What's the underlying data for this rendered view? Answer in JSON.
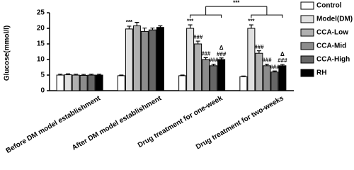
{
  "chart_data": {
    "type": "bar",
    "y_label": "Glucose(mmol/l)",
    "categories": [
      "Before DM model establishment",
      "After DM model establishment",
      "Drug treatment for one-week",
      "Drug treatment for two-weeks"
    ],
    "series": [
      {
        "name": "Control",
        "color": "#ffffff",
        "values": [
          5.0,
          4.8,
          4.8,
          4.5
        ],
        "errors": [
          0.3,
          0.2,
          0.2,
          0.2
        ],
        "annotations": [
          null,
          null,
          null,
          null
        ]
      },
      {
        "name": "Model(DM)",
        "color": "#e0e0e0",
        "values": [
          5.1,
          19.8,
          20,
          20
        ],
        "errors": [
          0.3,
          0.9,
          1.1,
          1.1
        ],
        "annotations": [
          null,
          [
            "***"
          ],
          [
            "***"
          ],
          [
            "***"
          ]
        ]
      },
      {
        "name": "CCA-Low",
        "color": "#b0b0b0",
        "values": [
          5.0,
          20.8,
          15,
          12
        ],
        "errors": [
          0.3,
          1.1,
          0.9,
          0.8
        ],
        "annotations": [
          null,
          null,
          [
            "###"
          ],
          [
            "###"
          ]
        ]
      },
      {
        "name": "CCA-Mid",
        "color": "#8c8c8c",
        "values": [
          4.9,
          19,
          10,
          8
        ],
        "errors": [
          0.3,
          1.1,
          0.6,
          0.5
        ],
        "annotations": [
          null,
          null,
          [
            "###"
          ],
          [
            "###"
          ]
        ]
      },
      {
        "name": "CCA-High",
        "color": "#666666",
        "values": [
          5.0,
          19.5,
          8,
          6
        ],
        "errors": [
          0.3,
          0.6,
          0.5,
          0.3
        ],
        "annotations": [
          null,
          null,
          [
            "###"
          ],
          [
            "###"
          ]
        ]
      },
      {
        "name": "RH",
        "color": "#000000",
        "values": [
          5.0,
          20.3,
          10,
          8
        ],
        "errors": [
          0.3,
          0.5,
          0.5,
          0.4
        ],
        "annotations": [
          null,
          null,
          [
            "Δ",
            "###"
          ],
          [
            "Δ",
            "###"
          ]
        ]
      }
    ],
    "bracket": {
      "text": "***",
      "series": 1,
      "between": [
        2,
        3
      ]
    },
    "ylim": [
      0,
      25
    ],
    "yticks": [
      0,
      5,
      10,
      15,
      20,
      25
    ],
    "legend": "right"
  }
}
